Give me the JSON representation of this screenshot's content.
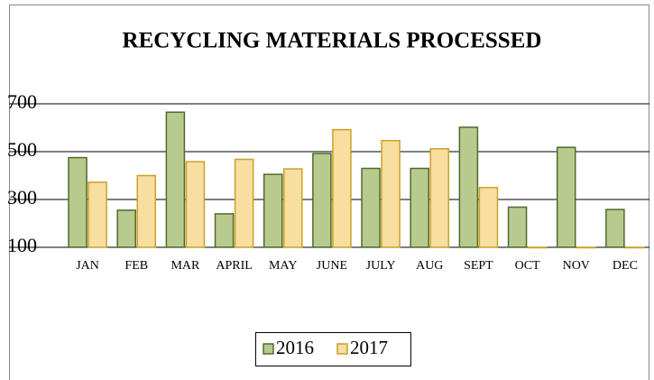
{
  "chart_data": {
    "type": "bar",
    "title": "RECYCLING MATERIALS PROCESSED",
    "categories": [
      "JAN",
      "FEB",
      "MAR",
      "APRIL",
      "MAY",
      "JUNE",
      "JULY",
      "AUG",
      "SEPT",
      "OCT",
      "NOV",
      "DEC"
    ],
    "series": [
      {
        "name": "2016",
        "color": "#b9ca8f",
        "values": [
          475,
          255,
          665,
          240,
          405,
          492,
          430,
          430,
          602,
          268,
          518,
          258
        ]
      },
      {
        "name": "2017",
        "color": "#f8dea0",
        "values": [
          372,
          400,
          458,
          468,
          428,
          592,
          546,
          512,
          350,
          100,
          100,
          100
        ]
      }
    ],
    "ylim": [
      100,
      700
    ],
    "yticks": [
      100,
      300,
      500,
      700
    ],
    "grid": true,
    "legend": "bottom"
  }
}
